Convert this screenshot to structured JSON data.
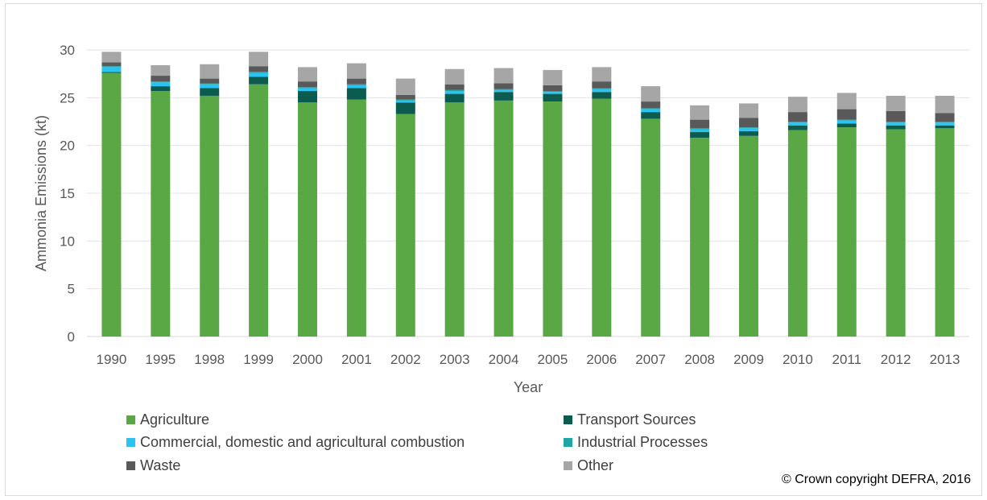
{
  "chart_data": {
    "type": "bar",
    "stacked": true,
    "xlabel": "Year",
    "ylabel": "Ammonia Emissions (kt)",
    "ylim": [
      0,
      30
    ],
    "yticks": [
      0,
      5,
      10,
      15,
      20,
      25,
      30
    ],
    "grid": true,
    "legend_position": "bottom",
    "categories": [
      "1990",
      "1995",
      "1998",
      "1999",
      "2000",
      "2001",
      "2002",
      "2003",
      "2004",
      "2005",
      "2006",
      "2007",
      "2008",
      "2009",
      "2010",
      "2011",
      "2012",
      "2013"
    ],
    "series": [
      {
        "name": "Agriculture",
        "color": "#5aa845",
        "values": [
          27.6,
          25.7,
          25.2,
          26.4,
          24.5,
          24.8,
          23.3,
          24.5,
          24.7,
          24.6,
          24.9,
          22.8,
          20.8,
          21.0,
          21.6,
          21.9,
          21.7,
          21.8
        ]
      },
      {
        "name": "Transport Sources",
        "color": "#0b5c4f",
        "values": [
          0.1,
          0.5,
          0.8,
          0.8,
          1.2,
          1.2,
          1.2,
          0.9,
          0.9,
          0.8,
          0.7,
          0.7,
          0.6,
          0.5,
          0.5,
          0.4,
          0.4,
          0.3
        ]
      },
      {
        "name": "Commercial, domestic and agricultural combustion",
        "color": "#2bc4f2",
        "values": [
          0.5,
          0.4,
          0.4,
          0.4,
          0.3,
          0.3,
          0.2,
          0.3,
          0.2,
          0.2,
          0.3,
          0.3,
          0.3,
          0.3,
          0.3,
          0.3,
          0.3,
          0.3
        ]
      },
      {
        "name": "Industrial Processes",
        "color": "#21a6a6",
        "values": [
          0.1,
          0.1,
          0.1,
          0.1,
          0.1,
          0.1,
          0.1,
          0.1,
          0.1,
          0.1,
          0.1,
          0.1,
          0.1,
          0.1,
          0.1,
          0.1,
          0.1,
          0.1
        ]
      },
      {
        "name": "Waste",
        "color": "#595959",
        "values": [
          0.4,
          0.6,
          0.5,
          0.6,
          0.6,
          0.6,
          0.5,
          0.6,
          0.6,
          0.6,
          0.7,
          0.7,
          0.9,
          1.0,
          1.0,
          1.1,
          1.1,
          0.9
        ]
      },
      {
        "name": "Other",
        "color": "#a6a6a6",
        "values": [
          1.1,
          1.1,
          1.5,
          1.5,
          1.5,
          1.6,
          1.7,
          1.6,
          1.6,
          1.6,
          1.5,
          1.6,
          1.5,
          1.5,
          1.6,
          1.7,
          1.6,
          1.8
        ]
      }
    ]
  },
  "copyright": "© Crown copyright DEFRA, 2016"
}
